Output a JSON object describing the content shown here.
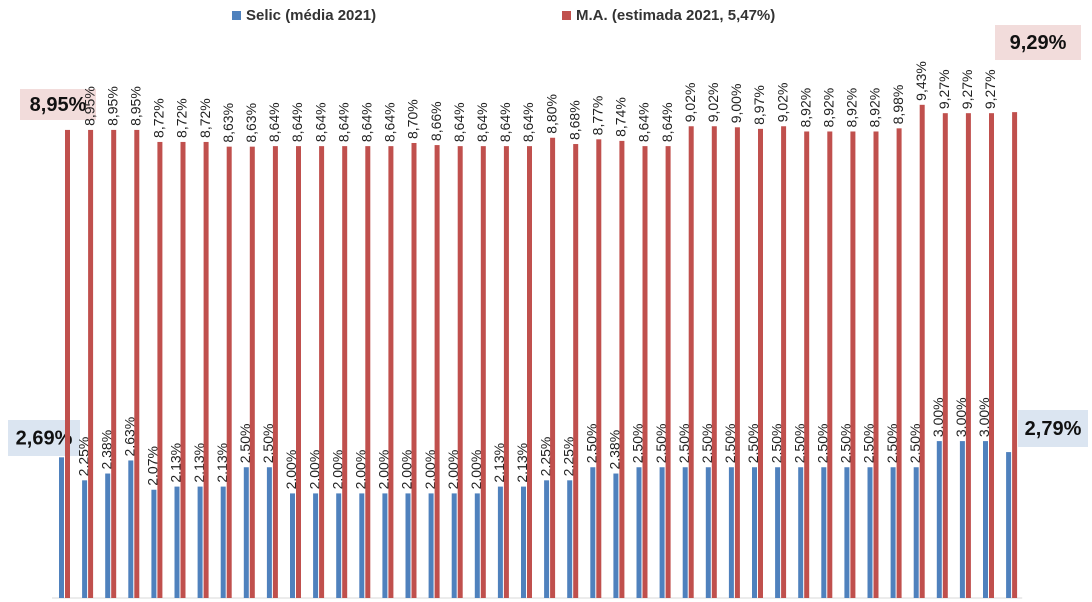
{
  "chart_data": {
    "type": "bar",
    "ylim": [
      0,
      10
    ],
    "series": [
      {
        "name": "Selic (média 2021)",
        "color": "#4f81bd",
        "values": [
          2.69,
          2.25,
          2.38,
          2.63,
          2.07,
          2.13,
          2.13,
          2.13,
          2.5,
          2.5,
          2.0,
          2.0,
          2.0,
          2.0,
          2.0,
          2.0,
          2.0,
          2.0,
          2.0,
          2.13,
          2.13,
          2.25,
          2.25,
          2.5,
          2.38,
          2.5,
          2.5,
          2.5,
          2.5,
          2.5,
          2.5,
          2.5,
          2.5,
          2.5,
          2.5,
          2.5,
          2.5,
          2.5,
          3.0,
          3.0,
          3.0,
          2.79
        ],
        "value_labels": [
          "2,69%",
          "2,25%",
          "2,38%",
          "2,63%",
          "2,07%",
          "2,13%",
          "2,13%",
          "2,13%",
          "2,50%",
          "2,50%",
          "2,00%",
          "2,00%",
          "2,00%",
          "2,00%",
          "2,00%",
          "2,00%",
          "2,00%",
          "2,00%",
          "2,00%",
          "2,13%",
          "2,13%",
          "2,25%",
          "2,25%",
          "2,50%",
          "2,38%",
          "2,50%",
          "2,50%",
          "2,50%",
          "2,50%",
          "2,50%",
          "2,50%",
          "2,50%",
          "2,50%",
          "2,50%",
          "2,50%",
          "2,50%",
          "2,50%",
          "2,50%",
          "3,00%",
          "3,00%",
          "3,00%",
          "2,79%"
        ]
      },
      {
        "name": "M.A. (estimada 2021, 5,47%)",
        "color": "#c0504d",
        "values": [
          8.95,
          8.95,
          8.95,
          8.95,
          8.72,
          8.72,
          8.72,
          8.63,
          8.63,
          8.64,
          8.64,
          8.64,
          8.64,
          8.64,
          8.64,
          8.7,
          8.66,
          8.64,
          8.64,
          8.64,
          8.64,
          8.8,
          8.68,
          8.77,
          8.74,
          8.64,
          8.64,
          9.02,
          9.02,
          9.0,
          8.97,
          9.02,
          8.92,
          8.92,
          8.92,
          8.92,
          8.98,
          9.43,
          9.27,
          9.27,
          9.27,
          9.29
        ],
        "value_labels": [
          "8,95%",
          "8,95%",
          "8,95%",
          "8,95%",
          "8,72%",
          "8,72%",
          "8,72%",
          "8,63%",
          "8,63%",
          "8,64%",
          "8,64%",
          "8,64%",
          "8,64%",
          "8,64%",
          "8,64%",
          "8,70%",
          "8,66%",
          "8,64%",
          "8,64%",
          "8,64%",
          "8,64%",
          "8,80%",
          "8,68%",
          "8,77%",
          "8,74%",
          "8,64%",
          "8,64%",
          "9,02%",
          "9,02%",
          "9,00%",
          "8,97%",
          "9,02%",
          "8,92%",
          "8,92%",
          "8,92%",
          "8,92%",
          "8,98%",
          "9,43%",
          "9,27%",
          "9,27%",
          "9,27%",
          "9,29%"
        ]
      }
    ]
  }
}
